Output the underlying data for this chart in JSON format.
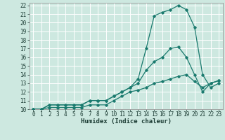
{
  "xlabel": "Humidex (Indice chaleur)",
  "xlim": [
    -0.5,
    23.5
  ],
  "ylim": [
    10,
    22.3
  ],
  "xticks": [
    0,
    1,
    2,
    3,
    4,
    5,
    6,
    7,
    8,
    9,
    10,
    11,
    12,
    13,
    14,
    15,
    16,
    17,
    18,
    19,
    20,
    21,
    22,
    23
  ],
  "yticks": [
    10,
    11,
    12,
    13,
    14,
    15,
    16,
    17,
    18,
    19,
    20,
    21,
    22
  ],
  "bg_color": "#cde8e0",
  "grid_color": "#ffffff",
  "line_color": "#1a7a6e",
  "series1_x": [
    0,
    1,
    2,
    3,
    4,
    5,
    6,
    7,
    8,
    9,
    10,
    11,
    12,
    13,
    14,
    15,
    16,
    17,
    18,
    19,
    20,
    21,
    22,
    23
  ],
  "series1_y": [
    10,
    10,
    10.5,
    10.5,
    10.5,
    10.5,
    10.5,
    11,
    11,
    11,
    11.5,
    12,
    12.5,
    13.5,
    17,
    20.8,
    21.2,
    21.5,
    22,
    21.5,
    19.5,
    14,
    12.5,
    13
  ],
  "series2_x": [
    0,
    1,
    2,
    3,
    4,
    5,
    6,
    7,
    8,
    9,
    10,
    11,
    12,
    13,
    14,
    15,
    16,
    17,
    18,
    19,
    20,
    21,
    22,
    23
  ],
  "series2_y": [
    10,
    10,
    10.5,
    10.5,
    10.5,
    10.5,
    10.5,
    11,
    11,
    11,
    11.5,
    12,
    12.5,
    13,
    14.5,
    15.5,
    16,
    17,
    17.2,
    16,
    14,
    12,
    13,
    13.3
  ],
  "series3_x": [
    0,
    1,
    2,
    3,
    4,
    5,
    6,
    7,
    8,
    9,
    10,
    11,
    12,
    13,
    14,
    15,
    16,
    17,
    18,
    19,
    20,
    21,
    22,
    23
  ],
  "series3_y": [
    10,
    10,
    10.2,
    10.2,
    10.2,
    10.2,
    10.2,
    10.5,
    10.5,
    10.5,
    11,
    11.5,
    12,
    12.2,
    12.5,
    13,
    13.2,
    13.5,
    13.8,
    14,
    13.2,
    12.5,
    13,
    13.3
  ],
  "tick_fontsize": 5.5,
  "label_fontsize": 6.5,
  "line_width": 0.9,
  "marker_size": 1.8
}
